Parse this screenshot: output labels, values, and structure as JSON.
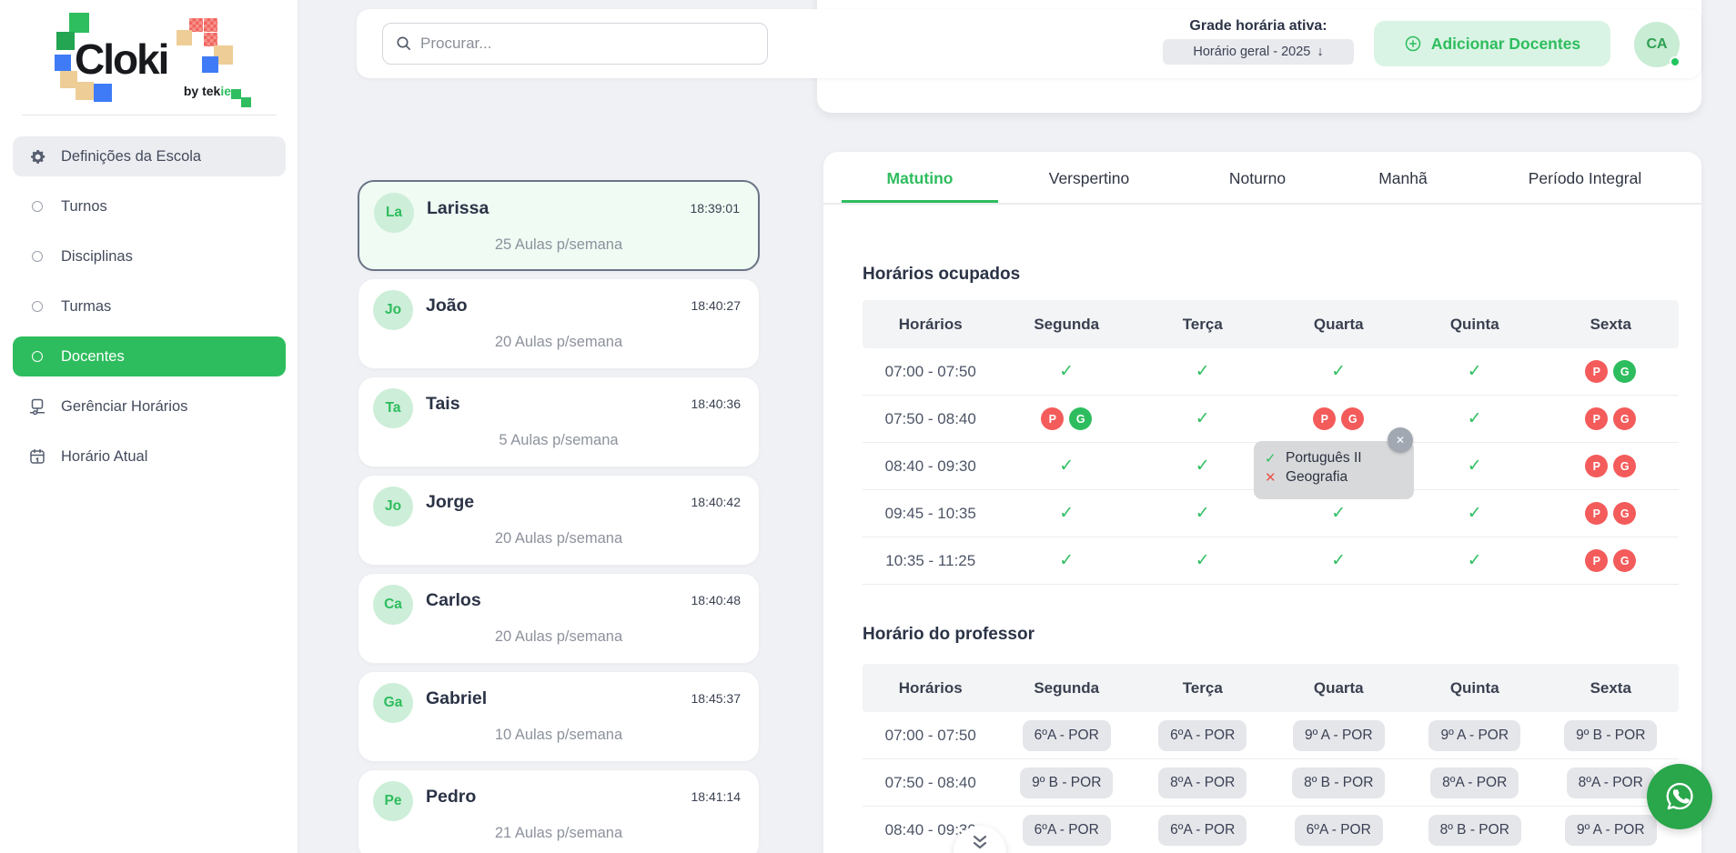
{
  "app": {
    "logo_text": "Cloki",
    "logo_sub_prefix": "by tek",
    "logo_sub_suffix": "ie"
  },
  "colors": {
    "accent_green": "#2ebd5e",
    "badge_red": "#f45b5b",
    "fab_green": "#2aa64b",
    "selected_card_bg": "#effbf3"
  },
  "sidebar": {
    "items": [
      {
        "name": "definicoes-da-escola",
        "label": "Definições da Escola",
        "icon": "gear-icon",
        "state": "highlighted"
      },
      {
        "name": "turnos",
        "label": "Turnos",
        "icon": "circle-icon",
        "state": ""
      },
      {
        "name": "disciplinas",
        "label": "Disciplinas",
        "icon": "circle-icon",
        "state": ""
      },
      {
        "name": "turmas",
        "label": "Turmas",
        "icon": "circle-icon",
        "state": ""
      },
      {
        "name": "docentes",
        "label": "Docentes",
        "icon": "circle-icon",
        "state": "active"
      },
      {
        "name": "gerenciar-horarios",
        "label": "Gerênciar Horários",
        "icon": "flowchart-icon",
        "state": ""
      },
      {
        "name": "horario-atual",
        "label": "Horário Atual",
        "icon": "calendar-icon",
        "state": ""
      }
    ]
  },
  "header": {
    "search_placeholder": "Procurar...",
    "grade_label": "Grade horária ativa:",
    "grade_value": "Horário geral - 2025",
    "arrow_down": "↓",
    "add_button": "Adicionar Docentes",
    "avatar_initials": "CA"
  },
  "teachers": [
    {
      "name": "larissa",
      "initials": "La",
      "display_name": "Larissa",
      "time": "18:39:01",
      "load": "25 Aulas p/semana",
      "selected": true
    },
    {
      "name": "joao",
      "initials": "Jo",
      "display_name": "João",
      "time": "18:40:27",
      "load": "20 Aulas p/semana",
      "selected": false
    },
    {
      "name": "tais",
      "initials": "Ta",
      "display_name": "Tais",
      "time": "18:40:36",
      "load": "5 Aulas p/semana",
      "selected": false
    },
    {
      "name": "jorge",
      "initials": "Jo",
      "display_name": "Jorge",
      "time": "18:40:42",
      "load": "20 Aulas p/semana",
      "selected": false
    },
    {
      "name": "carlos",
      "initials": "Ca",
      "display_name": "Carlos",
      "time": "18:40:48",
      "load": "20 Aulas p/semana",
      "selected": false
    },
    {
      "name": "gabriel",
      "initials": "Ga",
      "display_name": "Gabriel",
      "time": "18:45:37",
      "load": "10 Aulas p/semana",
      "selected": false
    },
    {
      "name": "pedro",
      "initials": "Pe",
      "display_name": "Pedro",
      "time": "18:41:14",
      "load": "21 Aulas p/semana",
      "selected": false
    }
  ],
  "tabs": [
    {
      "name": "matutino",
      "label": "Matutino",
      "active": true
    },
    {
      "name": "verspertino",
      "label": "Verspertino",
      "active": false
    },
    {
      "name": "noturno",
      "label": "Noturno",
      "active": false
    },
    {
      "name": "manha",
      "label": "Manhã",
      "active": false
    },
    {
      "name": "periodo-integral",
      "label": "Período Integral",
      "active": false
    }
  ],
  "occupied": {
    "title": "Horários ocupados",
    "columns": [
      "Horários",
      "Segunda",
      "Terça",
      "Quarta",
      "Quinta",
      "Sexta"
    ],
    "rows": [
      {
        "time": "07:00 - 07:50",
        "cells": [
          {
            "type": "check"
          },
          {
            "type": "check"
          },
          {
            "type": "check"
          },
          {
            "type": "check"
          },
          {
            "type": "badges",
            "badges": [
              {
                "letter": "P",
                "color": "red"
              },
              {
                "letter": "G",
                "color": "green"
              }
            ]
          }
        ]
      },
      {
        "time": "07:50 - 08:40",
        "cells": [
          {
            "type": "badges",
            "badges": [
              {
                "letter": "P",
                "color": "red"
              },
              {
                "letter": "G",
                "color": "green"
              }
            ]
          },
          {
            "type": "check"
          },
          {
            "type": "badges",
            "badges": [
              {
                "letter": "P",
                "color": "red"
              },
              {
                "letter": "G",
                "color": "red"
              }
            ]
          },
          {
            "type": "check"
          },
          {
            "type": "badges",
            "badges": [
              {
                "letter": "P",
                "color": "red"
              },
              {
                "letter": "G",
                "color": "red"
              }
            ]
          }
        ]
      },
      {
        "time": "08:40 - 09:30",
        "cells": [
          {
            "type": "check"
          },
          {
            "type": "check"
          },
          {
            "type": "check"
          },
          {
            "type": "check"
          },
          {
            "type": "badges",
            "badges": [
              {
                "letter": "P",
                "color": "red"
              },
              {
                "letter": "G",
                "color": "red"
              }
            ]
          }
        ]
      },
      {
        "time": "09:45 - 10:35",
        "cells": [
          {
            "type": "check"
          },
          {
            "type": "check"
          },
          {
            "type": "check"
          },
          {
            "type": "check"
          },
          {
            "type": "badges",
            "badges": [
              {
                "letter": "P",
                "color": "red"
              },
              {
                "letter": "G",
                "color": "red"
              }
            ]
          }
        ]
      },
      {
        "time": "10:35 - 11:25",
        "cells": [
          {
            "type": "check"
          },
          {
            "type": "check"
          },
          {
            "type": "check"
          },
          {
            "type": "check"
          },
          {
            "type": "badges",
            "badges": [
              {
                "letter": "P",
                "color": "red"
              },
              {
                "letter": "G",
                "color": "red"
              }
            ]
          }
        ]
      }
    ]
  },
  "tooltip": {
    "lines": [
      {
        "icon": "check-icon",
        "text": "Português II"
      },
      {
        "icon": "x-icon",
        "text": "Geografia"
      }
    ],
    "close_glyph": "✕"
  },
  "professor": {
    "title": "Horário do professor",
    "columns": [
      "Horários",
      "Segunda",
      "Terça",
      "Quarta",
      "Quinta",
      "Sexta"
    ],
    "rows": [
      {
        "time": "07:00 - 07:50",
        "cells": [
          "6ºA - POR",
          "6ºA - POR",
          "9º A - POR",
          "9º A - POR",
          "9º B - POR"
        ]
      },
      {
        "time": "07:50 - 08:40",
        "cells": [
          "9º B - POR",
          "8ºA - POR",
          "8º B - POR",
          "8ºA - POR",
          "8ºA - POR"
        ]
      },
      {
        "time": "08:40 - 09:30",
        "cells": [
          "6ºA - POR",
          "6ºA - POR",
          "6ºA - POR",
          "8º B - POR",
          "9º A - POR"
        ]
      }
    ]
  }
}
